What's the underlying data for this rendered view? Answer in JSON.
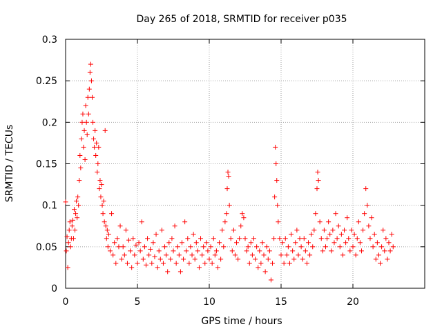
{
  "chart_data": {
    "type": "scatter",
    "title": "Day 265 of 2018, SRMTID for receiver p035",
    "xlabel": "GPS time / hours",
    "ylabel": "SRMTID / TECUs",
    "xlim": [
      0,
      25
    ],
    "ylim": [
      0,
      0.3
    ],
    "xticks": [
      0,
      5,
      10,
      15,
      20
    ],
    "xtick_labels": [
      "0",
      "5",
      "10",
      "15",
      "20"
    ],
    "yticks": [
      0,
      0.05,
      0.1,
      0.15,
      0.2,
      0.25,
      0.3
    ],
    "ytick_labels": [
      "0",
      "0.05",
      "0.1",
      "0.15",
      "0.2",
      "0.25",
      "0.3"
    ],
    "grid": true,
    "marker": "+",
    "color": "#ff0000",
    "series": [
      {
        "name": "SRMTID p035",
        "points": [
          [
            0.0,
            0.104
          ],
          [
            0.05,
            0.045
          ],
          [
            0.1,
            0.062
          ],
          [
            0.15,
            0.025
          ],
          [
            0.2,
            0.055
          ],
          [
            0.25,
            0.07
          ],
          [
            0.3,
            0.08
          ],
          [
            0.35,
            0.05
          ],
          [
            0.4,
            0.06
          ],
          [
            0.45,
            0.075
          ],
          [
            0.5,
            0.082
          ],
          [
            0.55,
            0.06
          ],
          [
            0.6,
            0.095
          ],
          [
            0.65,
            0.07
          ],
          [
            0.7,
            0.09
          ],
          [
            0.75,
            0.105
          ],
          [
            0.8,
            0.085
          ],
          [
            0.85,
            0.11
          ],
          [
            0.9,
            0.1
          ],
          [
            0.95,
            0.13
          ],
          [
            1.0,
            0.16
          ],
          [
            1.05,
            0.145
          ],
          [
            1.1,
            0.18
          ],
          [
            1.15,
            0.2
          ],
          [
            1.2,
            0.21
          ],
          [
            1.25,
            0.17
          ],
          [
            1.3,
            0.19
          ],
          [
            1.35,
            0.155
          ],
          [
            1.4,
            0.22
          ],
          [
            1.45,
            0.2
          ],
          [
            1.5,
            0.185
          ],
          [
            1.55,
            0.23
          ],
          [
            1.6,
            0.21
          ],
          [
            1.65,
            0.24
          ],
          [
            1.7,
            0.26
          ],
          [
            1.75,
            0.27
          ],
          [
            1.8,
            0.25
          ],
          [
            1.85,
            0.23
          ],
          [
            1.9,
            0.2
          ],
          [
            1.95,
            0.18
          ],
          [
            2.0,
            0.17
          ],
          [
            2.05,
            0.19
          ],
          [
            2.1,
            0.16
          ],
          [
            2.15,
            0.175
          ],
          [
            2.2,
            0.14
          ],
          [
            2.25,
            0.15
          ],
          [
            2.3,
            0.17
          ],
          [
            2.35,
            0.12
          ],
          [
            2.4,
            0.13
          ],
          [
            2.45,
            0.11
          ],
          [
            2.5,
            0.125
          ],
          [
            2.55,
            0.1
          ],
          [
            2.6,
            0.09
          ],
          [
            2.65,
            0.105
          ],
          [
            2.7,
            0.08
          ],
          [
            2.75,
            0.19
          ],
          [
            2.8,
            0.075
          ],
          [
            2.85,
            0.06
          ],
          [
            2.9,
            0.07
          ],
          [
            2.95,
            0.05
          ],
          [
            3.0,
            0.065
          ],
          [
            3.1,
            0.045
          ],
          [
            3.2,
            0.09
          ],
          [
            3.3,
            0.04
          ],
          [
            3.4,
            0.055
          ],
          [
            3.5,
            0.03
          ],
          [
            3.6,
            0.06
          ],
          [
            3.7,
            0.05
          ],
          [
            3.8,
            0.075
          ],
          [
            3.9,
            0.035
          ],
          [
            4.0,
            0.05
          ],
          [
            4.1,
            0.04
          ],
          [
            4.2,
            0.07
          ],
          [
            4.3,
            0.03
          ],
          [
            4.4,
            0.058
          ],
          [
            4.5,
            0.045
          ],
          [
            4.6,
            0.025
          ],
          [
            4.7,
            0.06
          ],
          [
            4.8,
            0.04
          ],
          [
            4.9,
            0.052
          ],
          [
            5.0,
            0.03
          ],
          [
            5.1,
            0.055
          ],
          [
            5.2,
            0.045
          ],
          [
            5.3,
            0.08
          ],
          [
            5.4,
            0.035
          ],
          [
            5.5,
            0.05
          ],
          [
            5.6,
            0.028
          ],
          [
            5.7,
            0.06
          ],
          [
            5.8,
            0.04
          ],
          [
            5.9,
            0.047
          ],
          [
            6.0,
            0.03
          ],
          [
            6.1,
            0.055
          ],
          [
            6.2,
            0.038
          ],
          [
            6.3,
            0.065
          ],
          [
            6.4,
            0.025
          ],
          [
            6.5,
            0.045
          ],
          [
            6.6,
            0.035
          ],
          [
            6.7,
            0.07
          ],
          [
            6.8,
            0.03
          ],
          [
            6.9,
            0.05
          ],
          [
            7.0,
            0.04
          ],
          [
            7.1,
            0.02
          ],
          [
            7.2,
            0.055
          ],
          [
            7.3,
            0.035
          ],
          [
            7.4,
            0.06
          ],
          [
            7.5,
            0.045
          ],
          [
            7.6,
            0.075
          ],
          [
            7.7,
            0.03
          ],
          [
            7.8,
            0.05
          ],
          [
            7.9,
            0.04
          ],
          [
            8.0,
            0.02
          ],
          [
            8.1,
            0.055
          ],
          [
            8.2,
            0.035
          ],
          [
            8.3,
            0.08
          ],
          [
            8.4,
            0.045
          ],
          [
            8.5,
            0.06
          ],
          [
            8.6,
            0.03
          ],
          [
            8.7,
            0.05
          ],
          [
            8.8,
            0.04
          ],
          [
            8.9,
            0.065
          ],
          [
            9.0,
            0.035
          ],
          [
            9.1,
            0.055
          ],
          [
            9.2,
            0.045
          ],
          [
            9.3,
            0.025
          ],
          [
            9.4,
            0.06
          ],
          [
            9.5,
            0.04
          ],
          [
            9.6,
            0.05
          ],
          [
            9.7,
            0.03
          ],
          [
            9.8,
            0.055
          ],
          [
            9.9,
            0.045
          ],
          [
            10.0,
            0.035
          ],
          [
            10.1,
            0.05
          ],
          [
            10.2,
            0.03
          ],
          [
            10.3,
            0.06
          ],
          [
            10.4,
            0.04
          ],
          [
            10.5,
            0.045
          ],
          [
            10.6,
            0.025
          ],
          [
            10.7,
            0.055
          ],
          [
            10.8,
            0.035
          ],
          [
            10.9,
            0.07
          ],
          [
            11.0,
            0.05
          ],
          [
            11.1,
            0.08
          ],
          [
            11.2,
            0.09
          ],
          [
            11.25,
            0.12
          ],
          [
            11.3,
            0.14
          ],
          [
            11.35,
            0.135
          ],
          [
            11.4,
            0.1
          ],
          [
            11.5,
            0.06
          ],
          [
            11.6,
            0.045
          ],
          [
            11.7,
            0.07
          ],
          [
            11.8,
            0.04
          ],
          [
            11.9,
            0.055
          ],
          [
            12.0,
            0.035
          ],
          [
            12.1,
            0.06
          ],
          [
            12.2,
            0.075
          ],
          [
            12.3,
            0.09
          ],
          [
            12.4,
            0.085
          ],
          [
            12.5,
            0.06
          ],
          [
            12.6,
            0.045
          ],
          [
            12.7,
            0.05
          ],
          [
            12.8,
            0.03
          ],
          [
            12.9,
            0.055
          ],
          [
            13.0,
            0.04
          ],
          [
            13.1,
            0.06
          ],
          [
            13.2,
            0.035
          ],
          [
            13.3,
            0.05
          ],
          [
            13.4,
            0.025
          ],
          [
            13.5,
            0.045
          ],
          [
            13.6,
            0.03
          ],
          [
            13.7,
            0.055
          ],
          [
            13.8,
            0.04
          ],
          [
            13.9,
            0.02
          ],
          [
            14.0,
            0.05
          ],
          [
            14.1,
            0.035
          ],
          [
            14.2,
            0.045
          ],
          [
            14.3,
            0.01
          ],
          [
            14.4,
            0.03
          ],
          [
            14.5,
            0.06
          ],
          [
            14.55,
            0.11
          ],
          [
            14.6,
            0.17
          ],
          [
            14.65,
            0.15
          ],
          [
            14.7,
            0.13
          ],
          [
            14.75,
            0.1
          ],
          [
            14.8,
            0.08
          ],
          [
            14.9,
            0.06
          ],
          [
            15.0,
            0.04
          ],
          [
            15.1,
            0.055
          ],
          [
            15.2,
            0.03
          ],
          [
            15.3,
            0.06
          ],
          [
            15.4,
            0.04
          ],
          [
            15.5,
            0.05
          ],
          [
            15.6,
            0.03
          ],
          [
            15.7,
            0.065
          ],
          [
            15.8,
            0.045
          ],
          [
            15.9,
            0.035
          ],
          [
            16.0,
            0.055
          ],
          [
            16.1,
            0.07
          ],
          [
            16.2,
            0.04
          ],
          [
            16.3,
            0.06
          ],
          [
            16.4,
            0.05
          ],
          [
            16.5,
            0.035
          ],
          [
            16.6,
            0.06
          ],
          [
            16.7,
            0.045
          ],
          [
            16.8,
            0.03
          ],
          [
            16.9,
            0.055
          ],
          [
            17.0,
            0.04
          ],
          [
            17.1,
            0.065
          ],
          [
            17.2,
            0.05
          ],
          [
            17.3,
            0.07
          ],
          [
            17.4,
            0.09
          ],
          [
            17.5,
            0.12
          ],
          [
            17.55,
            0.14
          ],
          [
            17.6,
            0.13
          ],
          [
            17.7,
            0.08
          ],
          [
            17.8,
            0.06
          ],
          [
            17.9,
            0.045
          ],
          [
            18.0,
            0.07
          ],
          [
            18.1,
            0.05
          ],
          [
            18.2,
            0.06
          ],
          [
            18.3,
            0.08
          ],
          [
            18.4,
            0.065
          ],
          [
            18.5,
            0.045
          ],
          [
            18.6,
            0.07
          ],
          [
            18.7,
            0.055
          ],
          [
            18.8,
            0.09
          ],
          [
            18.9,
            0.06
          ],
          [
            19.0,
            0.075
          ],
          [
            19.1,
            0.05
          ],
          [
            19.2,
            0.065
          ],
          [
            19.3,
            0.04
          ],
          [
            19.4,
            0.07
          ],
          [
            19.5,
            0.055
          ],
          [
            19.6,
            0.085
          ],
          [
            19.7,
            0.06
          ],
          [
            19.8,
            0.045
          ],
          [
            19.9,
            0.07
          ],
          [
            20.0,
            0.05
          ],
          [
            20.1,
            0.065
          ],
          [
            20.2,
            0.04
          ],
          [
            20.3,
            0.06
          ],
          [
            20.4,
            0.08
          ],
          [
            20.5,
            0.055
          ],
          [
            20.6,
            0.045
          ],
          [
            20.7,
            0.07
          ],
          [
            20.8,
            0.09
          ],
          [
            20.9,
            0.12
          ],
          [
            21.0,
            0.1
          ],
          [
            21.1,
            0.075
          ],
          [
            21.2,
            0.06
          ],
          [
            21.3,
            0.085
          ],
          [
            21.4,
            0.05
          ],
          [
            21.5,
            0.065
          ],
          [
            21.6,
            0.035
          ],
          [
            21.7,
            0.055
          ],
          [
            21.8,
            0.04
          ],
          [
            21.9,
            0.03
          ],
          [
            22.0,
            0.05
          ],
          [
            22.1,
            0.07
          ],
          [
            22.2,
            0.045
          ],
          [
            22.3,
            0.06
          ],
          [
            22.4,
            0.035
          ],
          [
            22.5,
            0.055
          ],
          [
            22.6,
            0.045
          ],
          [
            22.7,
            0.065
          ],
          [
            22.8,
            0.05
          ]
        ]
      }
    ]
  }
}
